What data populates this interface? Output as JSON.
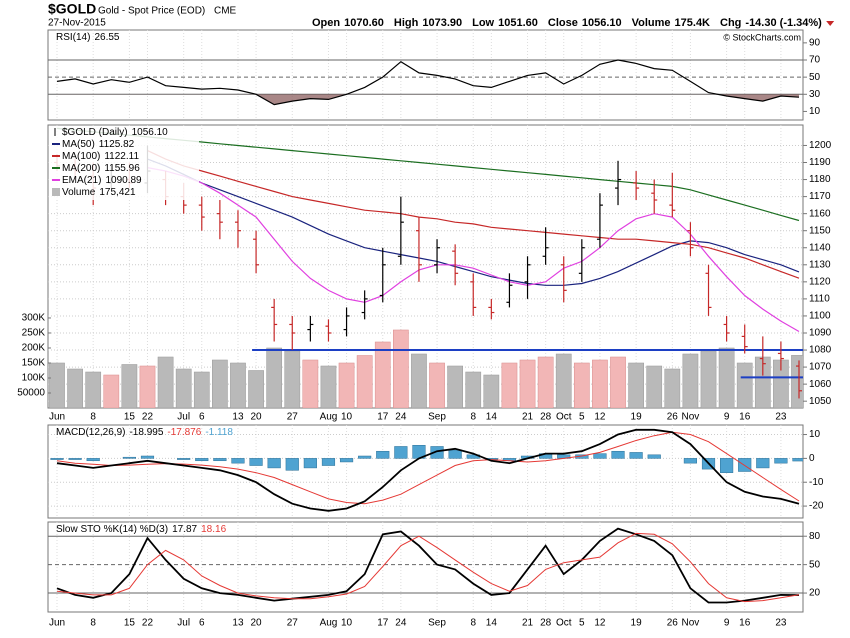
{
  "header": {
    "symbol": "$GOLD",
    "name": "Gold - Spot Price (EOD)",
    "exchange": "CME",
    "date": "27-Nov-2015",
    "quote": [
      {
        "label": "Open",
        "value": "1070.60"
      },
      {
        "label": "High",
        "value": "1073.90"
      },
      {
        "label": "Low",
        "value": "1051.60"
      },
      {
        "label": "Close",
        "value": "1056.10"
      },
      {
        "label": "Volume",
        "value": "175.4K"
      },
      {
        "label": "Chg",
        "value": "-14.30 (-1.34%)"
      }
    ],
    "watermark": "© StockCharts.com"
  },
  "chart_data": [
    {
      "type": "line",
      "name": "RSI(14)",
      "color": "#000000",
      "shade_color": "#8c5f5f",
      "values": [
        45,
        48,
        42,
        47,
        44,
        50,
        40,
        38,
        36,
        37,
        35,
        30,
        18,
        22,
        25,
        24,
        30,
        38,
        50,
        68,
        55,
        52,
        48,
        40,
        38,
        45,
        52,
        55,
        42,
        52,
        65,
        70,
        66,
        60,
        58,
        45,
        32,
        28,
        25,
        22,
        28,
        26.55
      ],
      "ylim": [
        0,
        105
      ],
      "yticks": [
        10,
        30,
        50,
        70,
        90
      ],
      "levels": [
        30,
        50,
        70
      ]
    },
    {
      "type": "ohlc",
      "name": "$GOLD (Daily)",
      "last_label": "1056.10",
      "categories": [
        "Jun",
        null,
        "8",
        null,
        "15",
        "22",
        null,
        "Jul",
        "6",
        null,
        "13",
        "20",
        null,
        "27",
        null,
        "Aug",
        "10",
        null,
        "17",
        "24",
        null,
        "Sep",
        null,
        "8",
        "14",
        null,
        "21",
        "28",
        "Oct",
        "5",
        "12",
        null,
        "19",
        null,
        "26",
        "Nov",
        null,
        "9",
        "16",
        null,
        "23",
        null
      ],
      "ohlc": {
        "open": [
          1190,
          1188,
          1182,
          1178,
          1180,
          1178,
          1180,
          1170,
          1165,
          1160,
          1155,
          1145,
          1105,
          1095,
          1092,
          1094,
          1092,
          1102,
          1112,
          1135,
          1150,
          1130,
          1138,
          1120,
          1105,
          1108,
          1120,
          1135,
          1130,
          1125,
          1145,
          1175,
          1178,
          1172,
          1165,
          1150,
          1125,
          1095,
          1088,
          1075,
          1078,
          1070.6
        ],
        "high": [
          1195,
          1192,
          1190,
          1188,
          1190,
          1200,
          1185,
          1178,
          1170,
          1168,
          1162,
          1150,
          1110,
          1100,
          1100,
          1098,
          1105,
          1115,
          1140,
          1170,
          1158,
          1145,
          1142,
          1125,
          1110,
          1125,
          1135,
          1152,
          1135,
          1145,
          1172,
          1191,
          1185,
          1180,
          1184,
          1155,
          1130,
          1100,
          1095,
          1088,
          1085,
          1073.9
        ],
        "low": [
          1185,
          1180,
          1165,
          1175,
          1175,
          1172,
          1165,
          1160,
          1150,
          1145,
          1140,
          1125,
          1085,
          1080,
          1085,
          1085,
          1088,
          1098,
          1108,
          1130,
          1120,
          1125,
          1118,
          1100,
          1098,
          1105,
          1110,
          1130,
          1108,
          1120,
          1140,
          1165,
          1168,
          1160,
          1158,
          1135,
          1100,
          1085,
          1078,
          1065,
          1068,
          1051.6
        ],
        "close": [
          1188,
          1185,
          1175,
          1182,
          1178,
          1185,
          1170,
          1165,
          1158,
          1155,
          1150,
          1130,
          1095,
          1090,
          1095,
          1090,
          1100,
          1110,
          1130,
          1155,
          1130,
          1140,
          1125,
          1105,
          1102,
          1118,
          1130,
          1140,
          1115,
          1140,
          1165,
          1180,
          1175,
          1168,
          1162,
          1140,
          1105,
          1090,
          1082,
          1072,
          1075,
          1056.1
        ]
      },
      "up_color": "#000000",
      "down_color": "#c62828",
      "ylim": [
        1046,
        1212
      ],
      "yticks": [
        1050,
        1060,
        1070,
        1080,
        1090,
        1100,
        1110,
        1120,
        1130,
        1140,
        1150,
        1160,
        1170,
        1180,
        1190,
        1200
      ],
      "grid": true,
      "series": [
        {
          "name": "MA(50)",
          "color": "#1a237e",
          "values": [
            null,
            null,
            null,
            null,
            null,
            1192,
            1188,
            1183,
            1178,
            1174,
            1170,
            1166,
            1162,
            1158,
            1153,
            1148,
            1144,
            1140,
            1138,
            1136,
            1134,
            1132,
            1129,
            1126,
            1123,
            1121,
            1119,
            1118,
            1118,
            1119,
            1122,
            1126,
            1131,
            1136,
            1141,
            1144,
            1143,
            1140,
            1136,
            1133,
            1130,
            1125.82
          ]
        },
        {
          "name": "MA(100)",
          "color": "#c62828",
          "values": [
            null,
            null,
            null,
            null,
            null,
            1197,
            1192,
            1188,
            1185,
            1182,
            1179,
            1176,
            1173,
            1170,
            1168,
            1166,
            1164,
            1162,
            1161,
            1160,
            1158,
            1157,
            1155,
            1154,
            1152,
            1151,
            1150,
            1149,
            1148,
            1147,
            1146,
            1145,
            1145,
            1144,
            1143,
            1142,
            1140,
            1137,
            1134,
            1130,
            1126,
            1122.11
          ]
        },
        {
          "name": "MA(200)",
          "color": "#1b6e20",
          "values": [
            1210,
            1209,
            1208,
            1207,
            1206,
            1205,
            1204,
            1203,
            1202,
            1201,
            1200,
            1199,
            1198,
            1197,
            1196,
            1195,
            1194,
            1193,
            1192,
            1191,
            1190,
            1189,
            1188,
            1187,
            1186,
            1185,
            1184,
            1183,
            1182,
            1181,
            1180,
            1179,
            1178,
            1177,
            1176,
            1174,
            1171,
            1168,
            1165,
            1162,
            1159,
            1155.96
          ]
        },
        {
          "name": "EMA(21)",
          "color": "#e040e0",
          "values": [
            null,
            null,
            null,
            null,
            null,
            1187,
            1185,
            1182,
            1178,
            1172,
            1165,
            1158,
            1145,
            1132,
            1122,
            1115,
            1110,
            1108,
            1112,
            1120,
            1127,
            1130,
            1130,
            1128,
            1124,
            1120,
            1118,
            1120,
            1128,
            1132,
            1140,
            1150,
            1157,
            1160,
            1158,
            1148,
            1135,
            1123,
            1112,
            1104,
            1097,
            1090.89
          ]
        }
      ],
      "volume": {
        "name": "Volume",
        "last_label": "175,421",
        "up_color": "#f2b6b6",
        "down_color": "#b9b9b9",
        "values": [
          150000,
          130000,
          120000,
          110000,
          145000,
          140000,
          170000,
          130000,
          120000,
          160000,
          150000,
          125000,
          200000,
          190000,
          160000,
          140000,
          150000,
          175000,
          220000,
          260000,
          180000,
          150000,
          140000,
          120000,
          110000,
          150000,
          160000,
          170000,
          180000,
          150000,
          160000,
          170000,
          150000,
          140000,
          130000,
          180000,
          190000,
          200000,
          150000,
          170000,
          160000,
          175421
        ],
        "ylim": [
          0,
          943000
        ],
        "ticks": [
          50000,
          {
            "value": 100000,
            "label": "100K"
          },
          {
            "value": 150000,
            "label": "150K"
          },
          {
            "value": 200000,
            "label": "200K"
          },
          {
            "value": 250000,
            "label": "250K"
          },
          {
            "value": 300000,
            "label": "300K"
          }
        ]
      },
      "trendlines": [
        {
          "value": 1080,
          "color": "#1c3fc4"
        },
        {
          "value": 1064,
          "color": "#1c3fc4"
        }
      ]
    },
    {
      "type": "macd",
      "name": "MACD(12,26,9)",
      "series": [
        {
          "color": "#000000",
          "values": [
            -2,
            -3,
            -4,
            -3,
            -2,
            -1,
            -2,
            -3,
            -4,
            -5,
            -7,
            -10,
            -15,
            -19,
            -21,
            -22,
            -21,
            -18,
            -12,
            -5,
            0,
            3,
            4,
            2,
            -1,
            -2,
            0,
            2,
            2,
            3,
            6,
            10,
            12,
            12,
            11,
            6,
            -2,
            -10,
            -14,
            -16,
            -17,
            -18.995
          ]
        },
        {
          "color": "#e53935",
          "values": [
            -1,
            -2,
            -2.5,
            -3,
            -2.8,
            -2.5,
            -2.2,
            -2.4,
            -2.8,
            -3.5,
            -4.5,
            -6,
            -8,
            -11,
            -14,
            -17,
            -18.5,
            -19,
            -17.5,
            -15,
            -11,
            -7,
            -3,
            -1,
            -0.5,
            -1,
            -1.5,
            -1,
            0,
            1,
            2.5,
            5,
            7.5,
            9.5,
            11,
            10,
            7,
            2,
            -3,
            -8,
            -13,
            -17.876
          ]
        },
        {
          "color": "#4fa3d1",
          "values": [
            -0.5,
            -0.5,
            -1,
            0,
            0.5,
            1,
            0,
            -0.5,
            -1,
            -1,
            -2,
            -3,
            -4,
            -5,
            -4,
            -3,
            -1.5,
            1,
            3,
            5,
            5.5,
            5,
            3.5,
            1.5,
            -0.5,
            -1,
            1,
            2,
            1.5,
            1.5,
            2,
            3,
            2.5,
            1.5,
            0,
            -2,
            -4.5,
            -6,
            -5.5,
            -4,
            -2,
            -1.118
          ]
        }
      ],
      "ylim": [
        -25,
        14
      ],
      "yticks": [
        -20,
        -10,
        0,
        10
      ],
      "grid": true
    },
    {
      "type": "line",
      "name": "Slow STO %K(14) %D(3)",
      "categories": [
        "Jun",
        null,
        "8",
        null,
        "15",
        "22",
        null,
        "Jul",
        "6",
        null,
        "13",
        "20",
        null,
        "27",
        null,
        "Aug",
        "10",
        null,
        "17",
        "24",
        null,
        "Sep",
        null,
        "8",
        "14",
        null,
        "21",
        "28",
        "Oct",
        "5",
        "12",
        null,
        "19",
        null,
        "26",
        "Nov",
        null,
        "9",
        "16",
        null,
        "23",
        null
      ],
      "series": [
        {
          "color": "#000000",
          "values": [
            25,
            18,
            15,
            20,
            40,
            78,
            55,
            35,
            25,
            20,
            18,
            15,
            12,
            14,
            16,
            18,
            22,
            40,
            82,
            85,
            70,
            50,
            45,
            30,
            18,
            20,
            45,
            70,
            40,
            55,
            75,
            88,
            82,
            75,
            60,
            25,
            10,
            10,
            12,
            15,
            18,
            17.87
          ]
        },
        {
          "color": "#e53935",
          "values": [
            22,
            20,
            18,
            18,
            25,
            50,
            65,
            55,
            38,
            28,
            20,
            17,
            15,
            14,
            14,
            16,
            19,
            27,
            48,
            70,
            80,
            68,
            55,
            42,
            30,
            22,
            28,
            45,
            52,
            55,
            58,
            73,
            83,
            82,
            72,
            53,
            30,
            15,
            11,
            12,
            15,
            18.16
          ]
        }
      ],
      "ylim": [
        0,
        95
      ],
      "yticks": [
        20,
        50,
        80
      ],
      "levels": [
        20,
        50,
        80
      ]
    }
  ]
}
